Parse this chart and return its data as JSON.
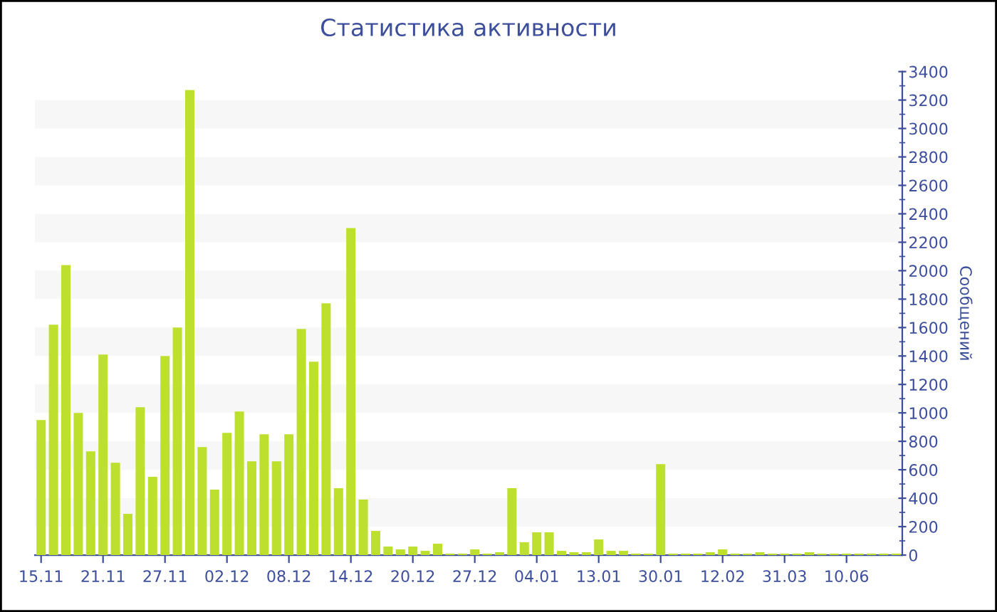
{
  "chart_data": {
    "type": "bar",
    "title": "Статистика активности",
    "ylabel": "Сообщений",
    "categories": [
      "15.11",
      null,
      null,
      null,
      null,
      "21.11",
      null,
      null,
      null,
      null,
      "27.11",
      null,
      null,
      null,
      null,
      "02.12",
      null,
      null,
      null,
      null,
      "08.12",
      null,
      null,
      null,
      null,
      "14.12",
      null,
      null,
      null,
      null,
      "20.12",
      null,
      null,
      null,
      null,
      "27.12",
      null,
      null,
      null,
      null,
      "04.01",
      null,
      null,
      null,
      null,
      "13.01",
      null,
      null,
      null,
      null,
      "30.01",
      null,
      null,
      null,
      null,
      "12.02",
      null,
      null,
      null,
      null,
      "31.03",
      null,
      null,
      null,
      null,
      "10.06",
      null,
      null,
      null,
      null
    ],
    "values": [
      950,
      1620,
      2040,
      1000,
      730,
      1410,
      650,
      290,
      1040,
      550,
      1400,
      1600,
      3270,
      760,
      460,
      860,
      1010,
      660,
      850,
      660,
      850,
      1590,
      1360,
      1770,
      470,
      2300,
      390,
      170,
      60,
      40,
      60,
      30,
      80,
      10,
      10,
      40,
      10,
      20,
      470,
      90,
      160,
      160,
      30,
      20,
      20,
      110,
      30,
      30,
      10,
      10,
      640,
      10,
      10,
      10,
      20,
      40,
      10,
      10,
      20,
      10,
      10,
      10,
      20,
      10,
      10,
      10,
      10,
      10,
      10,
      10
    ],
    "color": "#bde02e",
    "ylim": [
      0,
      3400
    ],
    "yticks": [
      0,
      200,
      400,
      600,
      800,
      1000,
      1200,
      1400,
      1600,
      1800,
      2000,
      2200,
      2400,
      2600,
      2800,
      3000,
      3200,
      3400
    ],
    "bands": [
      {
        "axis": "y",
        "from": 200,
        "to": 400,
        "color": "#f7f7f7"
      },
      {
        "axis": "y",
        "from": 600,
        "to": 800,
        "color": "#f7f7f7"
      },
      {
        "axis": "y",
        "from": 1000,
        "to": 1200,
        "color": "#f7f7f7"
      },
      {
        "axis": "y",
        "from": 1400,
        "to": 1600,
        "color": "#f7f7f7"
      },
      {
        "axis": "y",
        "from": 1800,
        "to": 2000,
        "color": "#f7f7f7"
      },
      {
        "axis": "y",
        "from": 2200,
        "to": 2400,
        "color": "#f7f7f7"
      },
      {
        "axis": "y",
        "from": 2600,
        "to": 2800,
        "color": "#f7f7f7"
      },
      {
        "axis": "y",
        "from": 3000,
        "to": 3200,
        "color": "#f7f7f7"
      }
    ]
  }
}
